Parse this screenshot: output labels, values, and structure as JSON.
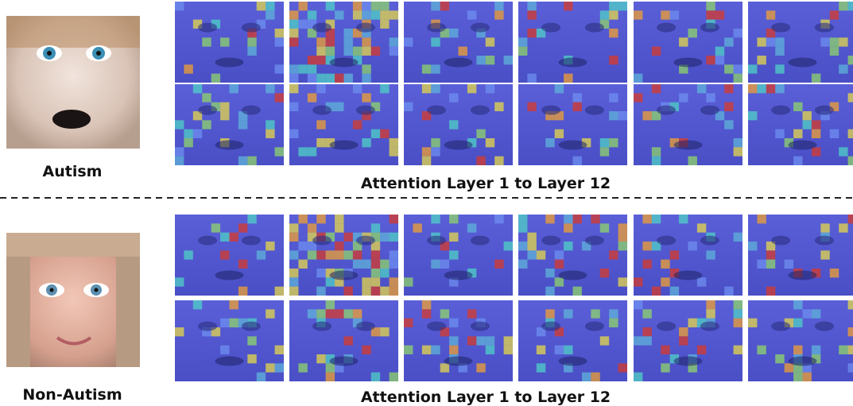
{
  "sections": [
    {
      "label": "Autism",
      "caption": "Attention Layer 1 to Layer 12"
    },
    {
      "label": "Non-Autism",
      "caption": "Attention Layer 1 to Layer 12"
    }
  ]
}
